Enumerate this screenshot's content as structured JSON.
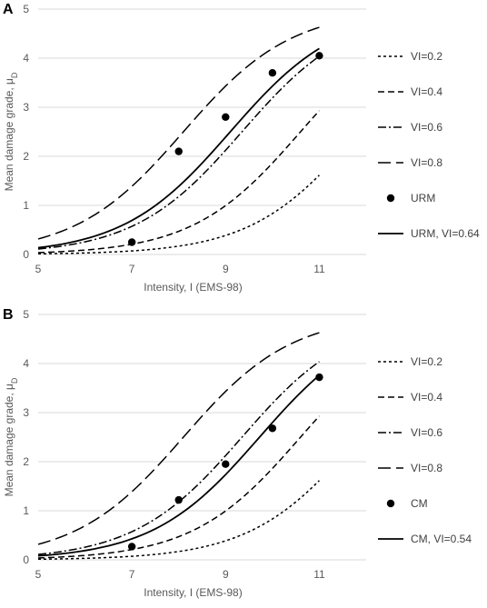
{
  "chart_data": [
    {
      "type": "line",
      "panel_label": "A",
      "xlabel": "Intensity, I (EMS-98)",
      "ylabel": "Mean damage grade, μ",
      "ylabel_sub": "D",
      "xlim": [
        5,
        12
      ],
      "ylim": [
        0,
        5
      ],
      "xticks": [
        5,
        7,
        9,
        11
      ],
      "yticks": [
        0,
        1,
        2,
        3,
        4,
        5
      ],
      "grid": true,
      "legend_position": "right",
      "series": [
        {
          "name": "VI=0.2",
          "style": "short-dash",
          "vi": 0.2
        },
        {
          "name": "VI=0.4",
          "style": "dash",
          "vi": 0.4
        },
        {
          "name": "VI=0.6",
          "style": "dash-dot",
          "vi": 0.6
        },
        {
          "name": "VI=0.8",
          "style": "long-dash",
          "vi": 0.8
        },
        {
          "name": "URM",
          "style": "marker",
          "x": [
            7,
            8,
            9,
            10,
            11
          ],
          "y": [
            0.25,
            2.1,
            2.8,
            3.7,
            4.05
          ]
        },
        {
          "name": "URM, VI=0.64",
          "style": "solid",
          "vi": 0.64
        }
      ]
    },
    {
      "type": "line",
      "panel_label": "B",
      "xlabel": "Intensity, I (EMS-98)",
      "ylabel": "Mean damage grade, μ",
      "ylabel_sub": "D",
      "xlim": [
        5,
        12
      ],
      "ylim": [
        0,
        5
      ],
      "xticks": [
        5,
        7,
        9,
        11
      ],
      "yticks": [
        0,
        1,
        2,
        3,
        4,
        5
      ],
      "grid": true,
      "legend_position": "right",
      "series": [
        {
          "name": "VI=0.2",
          "style": "short-dash",
          "vi": 0.2
        },
        {
          "name": "VI=0.4",
          "style": "dash",
          "vi": 0.4
        },
        {
          "name": "VI=0.6",
          "style": "dash-dot",
          "vi": 0.6
        },
        {
          "name": "VI=0.8",
          "style": "long-dash",
          "vi": 0.8
        },
        {
          "name": "CM",
          "style": "marker",
          "x": [
            7,
            8,
            9,
            10,
            11
          ],
          "y": [
            0.27,
            1.22,
            1.95,
            2.68,
            3.72
          ]
        },
        {
          "name": "CM, VI=0.54",
          "style": "solid",
          "vi": 0.54
        }
      ]
    }
  ]
}
